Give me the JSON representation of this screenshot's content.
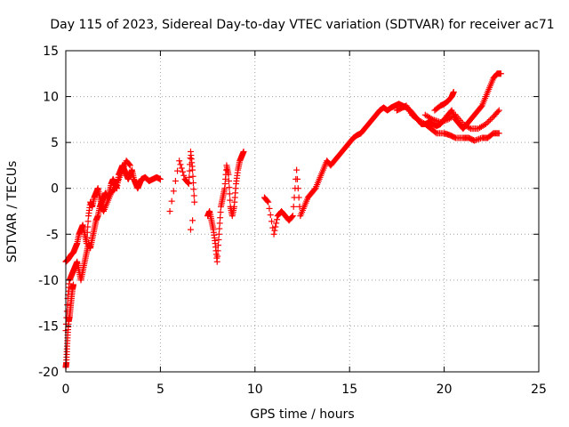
{
  "chart_data": {
    "type": "scatter",
    "title": "Day 115 of 2023, Sidereal Day-to-day VTEC variation (SDTVAR) for receiver ac71",
    "xlabel": "GPS time / hours",
    "ylabel": "SDTVAR / TECUs",
    "xlim": [
      0,
      25
    ],
    "ylim": [
      -20,
      15
    ],
    "xticks": [
      0,
      5,
      10,
      15,
      20,
      25
    ],
    "yticks": [
      -20,
      -15,
      -10,
      -5,
      0,
      5,
      10,
      15
    ],
    "grid": true,
    "marker": "+",
    "color": "#ff0000",
    "series": [
      {
        "name": "main trace",
        "x": [
          0.0,
          0.1,
          0.2,
          0.3,
          0.4,
          0.5,
          0.6,
          0.7,
          0.8,
          0.9,
          1.0,
          1.1,
          1.2,
          1.3,
          1.4,
          1.5,
          1.6,
          1.7,
          1.8,
          1.9,
          2.0,
          2.1,
          2.2,
          2.3,
          2.4,
          2.5,
          2.6,
          2.7,
          2.8,
          2.9,
          3.0,
          3.1,
          3.2,
          3.3,
          3.4,
          3.5,
          3.6,
          3.7,
          3.8,
          3.9,
          4.0,
          4.2,
          4.4,
          4.6,
          4.8,
          5.0
        ],
        "y": [
          -15.5,
          -12.0,
          -10.0,
          -9.5,
          -9.0,
          -8.5,
          -8.0,
          -9.0,
          -10.0,
          -9.0,
          -8.0,
          -7.0,
          -6.0,
          -6.5,
          -5.5,
          -4.5,
          -3.5,
          -3.0,
          -2.0,
          -1.5,
          -1.0,
          -0.5,
          -1.0,
          -0.5,
          0.5,
          1.0,
          0.5,
          0.0,
          1.5,
          2.0,
          2.5,
          2.0,
          1.5,
          1.0,
          1.5,
          2.0,
          1.0,
          0.5,
          0.0,
          0.5,
          1.0,
          1.2,
          0.8,
          1.0,
          1.2,
          1.0
        ]
      },
      {
        "name": "upper branch",
        "x": [
          0.0,
          0.1,
          0.2,
          0.3,
          0.4,
          0.5,
          0.6,
          0.7,
          0.8,
          0.9,
          1.0,
          1.1,
          1.2,
          1.3,
          1.4,
          1.5,
          1.6,
          1.7,
          1.8,
          1.9,
          2.0,
          2.2,
          2.4,
          2.6,
          2.8,
          3.0,
          3.2,
          3.4
        ],
        "y": [
          -8.0,
          -7.8,
          -7.5,
          -7.2,
          -7.0,
          -6.5,
          -6.0,
          -5.0,
          -4.5,
          -4.0,
          -5.0,
          -6.0,
          -3.0,
          -1.5,
          -2.0,
          -1.0,
          -0.5,
          0.0,
          -1.0,
          -2.0,
          -2.5,
          -1.5,
          -0.5,
          0.0,
          1.0,
          2.0,
          3.0,
          2.5
        ]
      },
      {
        "name": "initial drop",
        "x": [
          0.0,
          0.03,
          0.06,
          0.1,
          0.15,
          0.2,
          0.25,
          0.3,
          0.35,
          0.4
        ],
        "y": [
          -19.5,
          -19.0,
          -17.5,
          -16.0,
          -14.5,
          -14.0,
          -13.0,
          -12.0,
          -11.0,
          -10.5
        ]
      },
      {
        "name": "isolated 6-9h",
        "x": [
          5.5,
          6.0,
          6.3,
          6.5,
          6.6,
          6.7,
          6.8,
          6.7,
          6.6,
          7.5,
          7.6,
          7.7,
          7.8,
          7.9,
          8.0,
          8.1,
          8.2,
          8.3,
          8.4,
          8.5,
          8.6,
          8.7,
          8.8,
          8.9,
          9.0,
          9.1,
          9.2,
          9.3,
          9.4
        ],
        "y": [
          -2.5,
          3.0,
          1.0,
          0.5,
          4.0,
          2.0,
          -1.5,
          -3.5,
          -4.5,
          -3.0,
          -2.5,
          -3.5,
          -4.5,
          -6.0,
          -8.0,
          -5.0,
          -2.0,
          -1.0,
          0.0,
          2.5,
          1.5,
          -2.0,
          -3.0,
          -2.0,
          0.5,
          2.0,
          3.0,
          3.5,
          4.0
        ]
      },
      {
        "name": "afternoon trace",
        "x": [
          10.5,
          10.7,
          11.0,
          11.2,
          11.4,
          11.6,
          11.8,
          12.0,
          12.2,
          12.4,
          12.6,
          12.8,
          13.0,
          13.2,
          13.4,
          13.6,
          13.8,
          14.0,
          14.2,
          14.4,
          14.6,
          14.8,
          15.0,
          15.2,
          15.4,
          15.6,
          15.8,
          16.0,
          16.2,
          16.4,
          16.6,
          16.8,
          17.0,
          17.2,
          17.4,
          17.6,
          17.8,
          18.0,
          18.2,
          18.4,
          18.6,
          18.8,
          19.0,
          19.2,
          19.4,
          19.6,
          19.8,
          20.0,
          20.2,
          20.4,
          20.6,
          20.8,
          21.0,
          21.2,
          21.4,
          21.6,
          21.8,
          22.0,
          22.2,
          22.4,
          22.6,
          22.8,
          23.0
        ],
        "y": [
          -1.0,
          -1.5,
          -5.0,
          -3.0,
          -2.5,
          -3.0,
          -3.5,
          -3.0,
          2.0,
          -3.0,
          -2.0,
          -1.0,
          -0.5,
          0.0,
          1.0,
          2.0,
          3.0,
          2.5,
          3.0,
          3.5,
          4.0,
          4.5,
          5.0,
          5.5,
          5.8,
          6.0,
          6.5,
          7.0,
          7.5,
          8.0,
          8.5,
          8.8,
          8.5,
          8.8,
          9.0,
          9.2,
          9.0,
          8.8,
          8.5,
          8.0,
          7.5,
          7.0,
          7.0,
          7.2,
          7.0,
          6.8,
          7.0,
          7.5,
          8.0,
          8.5,
          7.5,
          7.0,
          6.5,
          7.0,
          7.5,
          8.0,
          8.5,
          9.0,
          10.0,
          11.0,
          12.0,
          12.5,
          12.5
        ]
      },
      {
        "name": "afternoon lower branch",
        "x": [
          17.5,
          17.8,
          18.0,
          18.3,
          18.6,
          19.0,
          19.3,
          19.6,
          20.0,
          20.3,
          20.6,
          21.0,
          21.3,
          21.6,
          22.0,
          22.3,
          22.6,
          22.9
        ],
        "y": [
          8.5,
          8.8,
          9.0,
          8.0,
          7.5,
          7.0,
          6.5,
          6.0,
          6.0,
          5.8,
          5.5,
          5.5,
          5.5,
          5.2,
          5.5,
          5.5,
          6.0,
          6.0
        ]
      },
      {
        "name": "afternoon middle branch",
        "x": [
          19.0,
          19.4,
          19.8,
          20.2,
          20.6,
          21.0,
          21.4,
          21.8,
          22.2,
          22.6,
          22.9
        ],
        "y": [
          8.0,
          7.5,
          7.2,
          7.5,
          8.0,
          7.0,
          6.5,
          6.5,
          7.0,
          7.8,
          8.5
        ]
      },
      {
        "name": "afternoon top branch",
        "x": [
          19.5,
          19.8,
          20.0,
          20.2,
          20.4,
          20.5
        ],
        "y": [
          8.5,
          9.0,
          9.2,
          9.5,
          10.0,
          10.5
        ]
      }
    ]
  }
}
